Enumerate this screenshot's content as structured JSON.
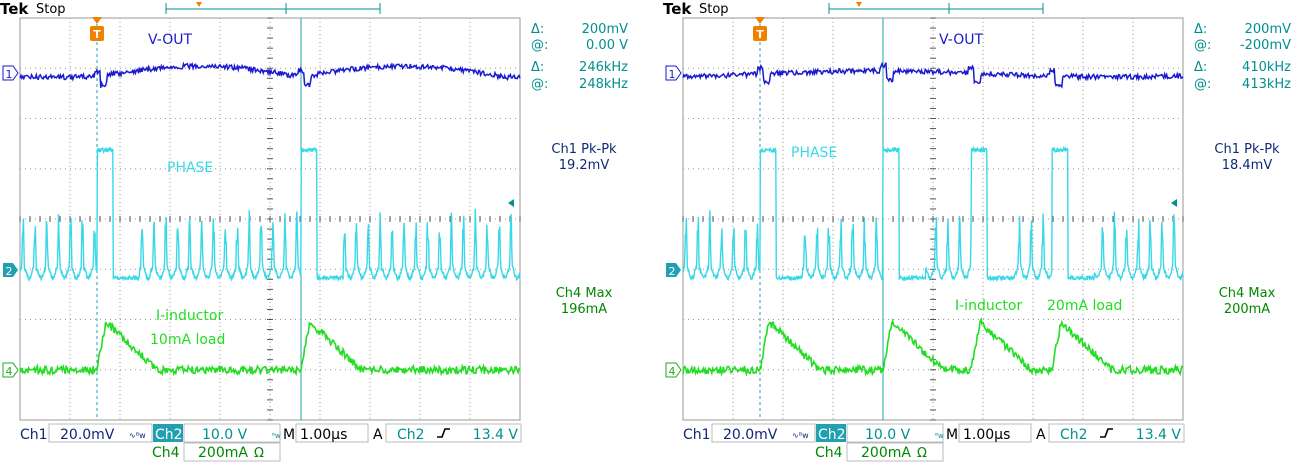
{
  "chart_data": [
    {
      "type": "line",
      "brand": "Tek",
      "run_state": "Stop",
      "trigger_marker": "T",
      "cursor_readout": {
        "v_delta": "200mV",
        "v_at": "0.00 V",
        "f_delta": "246kHz",
        "f_at": "248kHz"
      },
      "measurements": [
        {
          "label": "Ch1 Pk-Pk",
          "value": "19.2mV"
        },
        {
          "label": "Ch4 Max",
          "value": "196mA"
        }
      ],
      "annotations": {
        "vout": "V-OUT",
        "phase": "PHASE",
        "inductor": "I-inductor",
        "load": "10mA load"
      },
      "status": {
        "ch1": "Ch1",
        "ch1_scale": "20.0mV",
        "ch2": "Ch2",
        "ch2_scale": "10.0 V",
        "ch4": "Ch4",
        "ch4_scale": "200mA",
        "timebase_label": "M",
        "timebase": "1.00µs",
        "trig_label": "A",
        "trig_source": "Ch2",
        "trig_level": "13.4 V"
      },
      "channel_markers": [
        "1",
        "2",
        "4"
      ],
      "x_range_us": [
        0,
        10
      ],
      "cursor_time_us": [
        1.54,
        5.62
      ],
      "pulse_times_us": [
        1.54,
        5.62
      ],
      "colors": {
        "ch1": "#1a1ad0",
        "ch2": "#38d8e8",
        "ch4": "#22dd22",
        "readout": "#009090",
        "meas": "#102878",
        "grid": "#9a9a9a"
      }
    },
    {
      "type": "line",
      "brand": "Tek",
      "run_state": "Stop",
      "trigger_marker": "T",
      "cursor_readout": {
        "v_delta": "200mV",
        "v_at": "-200mV",
        "f_delta": "410kHz",
        "f_at": "413kHz"
      },
      "measurements": [
        {
          "label": "Ch1 Pk-Pk",
          "value": "18.4mV"
        },
        {
          "label": "Ch4 Max",
          "value": "200mA"
        }
      ],
      "annotations": {
        "vout": "V-OUT",
        "phase": "PHASE",
        "inductor": "I-inductor",
        "load": "20mA load"
      },
      "status": {
        "ch1": "Ch1",
        "ch1_scale": "20.0mV",
        "ch2": "Ch2",
        "ch2_scale": "10.0 V",
        "ch4": "Ch4",
        "ch4_scale": "200mA",
        "timebase_label": "M",
        "timebase": "1.00µs",
        "trig_label": "A",
        "trig_source": "Ch2",
        "trig_level": "13.4 V"
      },
      "channel_markers": [
        "1",
        "2",
        "4"
      ],
      "x_range_us": [
        0,
        10
      ],
      "cursor_time_us": [
        1.54,
        4.0
      ],
      "pulse_times_us": [
        1.54,
        4.0,
        5.76,
        7.38
      ],
      "colors": {
        "ch1": "#1a1ad0",
        "ch2": "#38d8e8",
        "ch4": "#22dd22",
        "readout": "#009090",
        "meas": "#102878",
        "grid": "#9a9a9a"
      }
    }
  ]
}
